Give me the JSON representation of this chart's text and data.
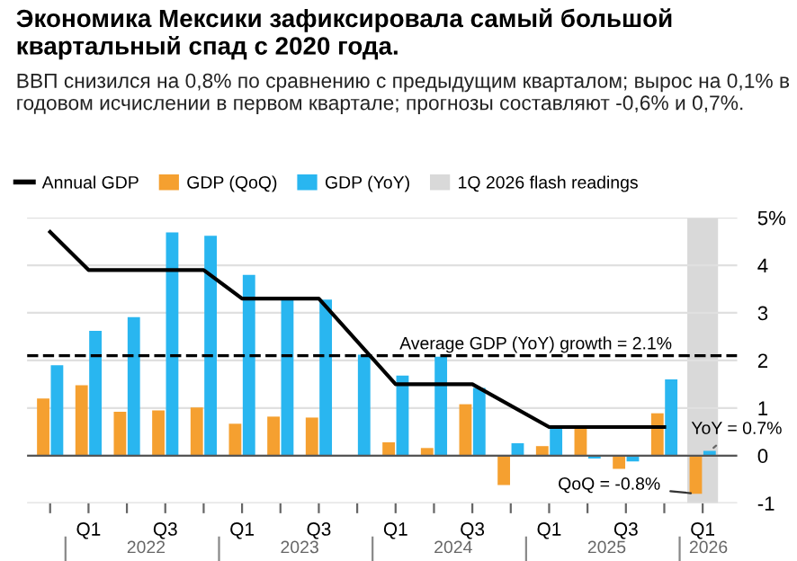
{
  "chart_data": {
    "type": "bar",
    "title": "Экономика Мексики зафиксировала самый большой квартальный спад с 2020 года.",
    "subtitle": "ВВП снизился на 0,8% по сравнению с предыдущим кварталом; вырос на 0,1% в годовом исчислении в первом квартале; прогнозы составляют -0,6% и 0,7%.",
    "categories": [
      null,
      "Q1",
      null,
      "Q3",
      null,
      "Q1",
      null,
      "Q3",
      null,
      "Q1",
      null,
      "Q3",
      null,
      "Q1",
      null,
      "Q3",
      null,
      "Q1"
    ],
    "series": [
      {
        "name": "Annual GDP",
        "type": "line",
        "color": "#000000",
        "values": [
          4.7,
          3.9,
          3.9,
          3.9,
          3.9,
          3.3,
          3.3,
          3.3,
          null,
          1.5,
          1.5,
          1.5,
          null,
          0.6,
          0.6,
          0.6,
          0.6,
          null
        ]
      },
      {
        "name": "GDP (QoQ)",
        "color": "#f5a030",
        "values": [
          1.2,
          1.48,
          0.92,
          0.95,
          1.01,
          0.67,
          0.82,
          0.8,
          0.0,
          0.28,
          0.16,
          1.08,
          -0.62,
          0.2,
          0.61,
          -0.28,
          0.89,
          -0.8
        ]
      },
      {
        "name": "GDP (YoY)",
        "color": "#29b6f0",
        "values": [
          1.9,
          2.62,
          2.91,
          4.69,
          4.62,
          3.8,
          3.28,
          3.28,
          2.12,
          1.68,
          2.08,
          1.42,
          0.26,
          0.61,
          -0.06,
          -0.12,
          1.6,
          0.1
        ]
      }
    ],
    "ylim": [
      -1,
      5
    ],
    "yticks": [
      -1,
      0,
      1,
      2,
      3,
      4,
      {
        "value": 5,
        "label": "5%"
      }
    ],
    "grid": "y",
    "legend": "top left",
    "ref_lines": [
      {
        "axis": "y",
        "value": 2.1,
        "label": "Average GDP (YoY) growth = 2.1%",
        "color": "#000000",
        "line_style": "dashed"
      }
    ],
    "annotations": [
      "2022",
      "2023",
      "2024",
      "2025",
      "2026",
      "YoY = 0.7%",
      "QoQ = -0.8%",
      "1Q 2026 flash readings"
    ]
  }
}
